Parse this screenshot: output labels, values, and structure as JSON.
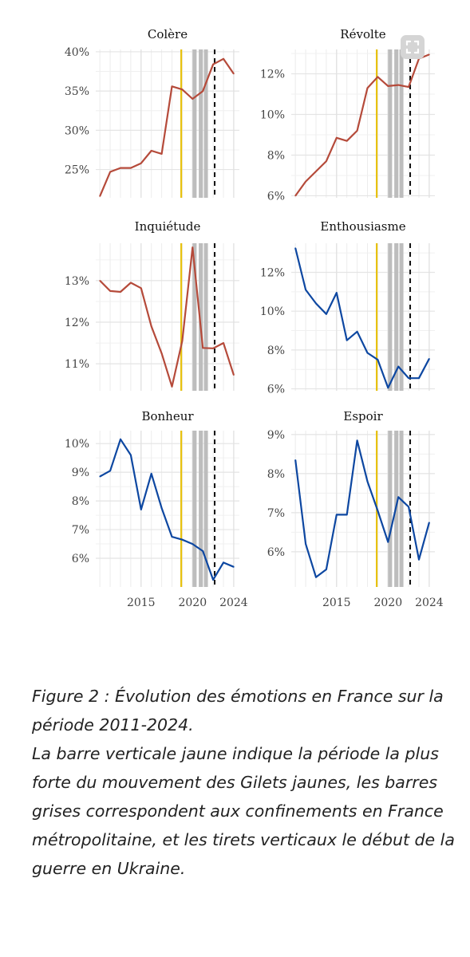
{
  "chart_data": [
    {
      "type": "line",
      "title": "Colère",
      "color": "#b54a3a",
      "x": [
        2011,
        2012,
        2013,
        2014,
        2015,
        2016,
        2017,
        2018,
        2019,
        2020,
        2021,
        2022,
        2023,
        2024
      ],
      "values": [
        21.6,
        24.7,
        25.2,
        25.2,
        25.8,
        27.4,
        27.0,
        35.6,
        35.2,
        34.0,
        35.0,
        38.4,
        39.1,
        37.2
      ],
      "yticks": [
        25,
        30,
        35,
        40
      ],
      "ytick_labels": [
        "25%",
        "30%",
        "35%",
        "40%"
      ],
      "ylim": [
        21.4,
        40.3
      ],
      "xticks": [
        2015,
        2020,
        2024
      ],
      "xtick_labels": []
    },
    {
      "type": "line",
      "title": "Révolte",
      "color": "#b54a3a",
      "x": [
        2011,
        2012,
        2013,
        2014,
        2015,
        2016,
        2017,
        2018,
        2019,
        2020,
        2021,
        2022,
        2023,
        2024
      ],
      "values": [
        6.0,
        6.7,
        7.2,
        7.7,
        8.85,
        8.7,
        9.2,
        11.3,
        11.85,
        11.4,
        11.45,
        11.35,
        12.75,
        12.95
      ],
      "yticks": [
        6,
        8,
        10,
        12
      ],
      "ytick_labels": [
        "6%",
        "8%",
        "10%",
        "12%"
      ],
      "ylim": [
        5.9,
        13.2
      ],
      "xticks": [
        2015,
        2020,
        2024
      ],
      "xtick_labels": []
    },
    {
      "type": "line",
      "title": "Inquiétude",
      "color": "#b54a3a",
      "x": [
        2011,
        2012,
        2013,
        2014,
        2015,
        2016,
        2017,
        2018,
        2019,
        2020,
        2021,
        2022,
        2023,
        2024
      ],
      "values": [
        13.0,
        12.75,
        12.73,
        12.95,
        12.82,
        11.9,
        11.25,
        10.45,
        11.55,
        13.8,
        11.38,
        11.37,
        11.5,
        10.73
      ],
      "yticks": [
        11,
        12,
        13
      ],
      "ytick_labels": [
        "11%",
        "12%",
        "13%"
      ],
      "ylim": [
        10.35,
        13.9
      ],
      "xticks": [
        2015,
        2020,
        2024
      ],
      "xtick_labels": []
    },
    {
      "type": "line",
      "title": "Enthousiasme",
      "color": "#0d47a1",
      "x": [
        2011,
        2012,
        2013,
        2014,
        2015,
        2016,
        2017,
        2018,
        2019,
        2020,
        2021,
        2022,
        2023,
        2024
      ],
      "values": [
        13.25,
        11.1,
        10.4,
        9.85,
        10.95,
        8.5,
        8.95,
        7.85,
        7.5,
        6.05,
        7.15,
        6.55,
        6.55,
        7.55
      ],
      "yticks": [
        6,
        8,
        10,
        12
      ],
      "ytick_labels": [
        "6%",
        "8%",
        "10%",
        "12%"
      ],
      "ylim": [
        5.9,
        13.5
      ],
      "xticks": [
        2015,
        2020,
        2024
      ],
      "xtick_labels": []
    },
    {
      "type": "line",
      "title": "Bonheur",
      "color": "#0d47a1",
      "x": [
        2011,
        2012,
        2013,
        2014,
        2015,
        2016,
        2017,
        2018,
        2019,
        2020,
        2021,
        2022,
        2023,
        2024
      ],
      "values": [
        8.85,
        9.05,
        10.15,
        9.6,
        7.7,
        8.95,
        7.75,
        6.75,
        6.65,
        6.5,
        6.25,
        5.25,
        5.85,
        5.7
      ],
      "yticks": [
        6,
        7,
        8,
        9,
        10
      ],
      "ytick_labels": [
        "6%",
        "7%",
        "8%",
        "9%",
        "10%"
      ],
      "ylim": [
        5.0,
        10.45
      ],
      "xticks": [
        2015,
        2020,
        2024
      ],
      "xtick_labels": [
        "2015",
        "2020",
        "2024"
      ]
    },
    {
      "type": "line",
      "title": "Espoir",
      "color": "#0d47a1",
      "x": [
        2011,
        2012,
        2013,
        2014,
        2015,
        2016,
        2017,
        2018,
        2019,
        2020,
        2021,
        2022,
        2023,
        2024
      ],
      "values": [
        8.35,
        6.2,
        5.35,
        5.55,
        6.95,
        6.95,
        8.85,
        7.8,
        7.05,
        6.25,
        7.4,
        7.15,
        5.8,
        6.75
      ],
      "yticks": [
        6,
        7,
        8,
        9
      ],
      "ytick_labels": [
        "6%",
        "7%",
        "8%",
        "9%"
      ],
      "ylim": [
        5.1,
        9.1
      ],
      "xticks": [
        2015,
        2020,
        2024
      ],
      "xtick_labels": [
        "2015",
        "2020",
        "2024"
      ]
    }
  ],
  "markers": {
    "yellow_line_year": 2018.9,
    "grey_bars_years": [
      2020.2,
      2020.8,
      2021.3
    ],
    "dashed_line_year": 2022.15,
    "colors": {
      "yellow": "#e8c20f",
      "grey": "#bdbdbd",
      "dashed": "#111111"
    }
  },
  "caption": {
    "line1": "Figure 2 : Évolution des émotions en France sur la période 2011-2024.",
    "line2": "La barre verticale jaune indique la période la plus forte du mouvement des Gilets jaunes, les barres grises correspondent aux confinements en France métropolitaine, et les tirets verticaux le début de la guerre en Ukraine."
  },
  "ui": {
    "expand_icon": "expand-icon"
  }
}
